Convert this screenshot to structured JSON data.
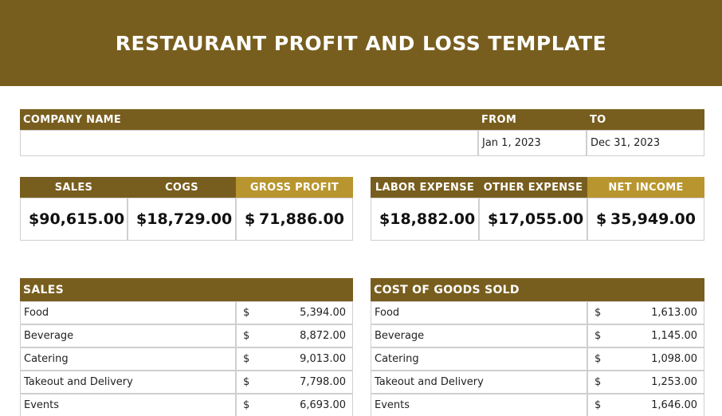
{
  "header": {
    "title": "RESTAURANT PROFIT AND LOSS TEMPLATE"
  },
  "company": {
    "labels": [
      "COMPANY NAME",
      "FROM",
      "TO"
    ],
    "from": "Jan 1, 2023",
    "to": "Dec 31, 2023"
  },
  "summary": {
    "groups": [
      [
        {
          "label": "SALES",
          "currency": "$",
          "amount": "90,615.00"
        },
        {
          "label": "COGS",
          "currency": "$",
          "amount": "18,729.00"
        },
        {
          "label": "GROSS PROFIT",
          "currency": "$",
          "amount": "71,886.00"
        }
      ],
      [
        {
          "label": "LABOR EXPENSE",
          "currency": "$",
          "amount": "18,882.00"
        },
        {
          "label": "OTHER EXPENSE",
          "currency": "$",
          "amount": "17,055.00"
        },
        {
          "label": "NET INCOME",
          "currency": "$",
          "amount": "35,949.00"
        }
      ]
    ]
  },
  "tables": [
    {
      "title": "SALES",
      "rows": [
        [
          "Food",
          "$",
          "5,394.00"
        ],
        [
          "Beverage",
          "$",
          "8,872.00"
        ],
        [
          "Catering",
          "$",
          "9,013.00"
        ],
        [
          "Takeout and Delivery",
          "$",
          "7,798.00"
        ],
        [
          "Events",
          "$",
          "6,693.00"
        ]
      ]
    },
    {
      "title": "COST OF GOODS SOLD",
      "rows": [
        [
          "Food",
          "$",
          "1,613.00"
        ],
        [
          "Beverage",
          "$",
          "1,145.00"
        ],
        [
          "Catering",
          "$",
          "1,098.00"
        ],
        [
          "Takeout and Delivery",
          "$",
          "1,253.00"
        ],
        [
          "Events",
          "$",
          "1,646.00"
        ]
      ]
    }
  ]
}
